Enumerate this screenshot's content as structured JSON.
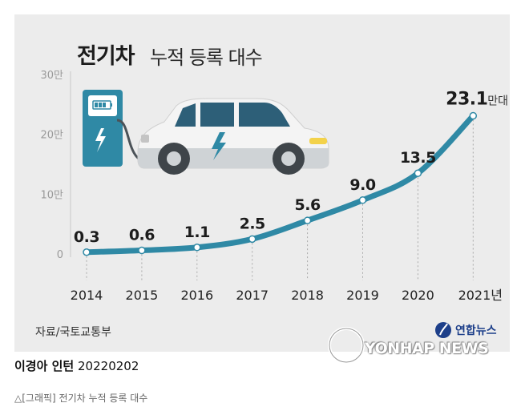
{
  "header": {
    "title_bold": "전기차",
    "title_rest": "누적 등록 대수"
  },
  "footer": {
    "source": "자료/국토교통부",
    "credit_name": "이경아 인턴",
    "credit_date": "20220202",
    "caption": "△[그래픽] 전기차 누적 등록 대수",
    "brand_ko": "연합뉴스",
    "brand_en": "YONHAP NEWS"
  },
  "colors": {
    "line": "#2f89a5",
    "point_fill": "#ffffff",
    "text": "#1c1c1c",
    "panel": "#ececec",
    "charger": "#2f89a5",
    "car_body": "#f4f4f4",
    "car_dark": "#4b5258",
    "window": "#2d5f78",
    "bolt": "#2f89a5"
  },
  "icons": [
    "ev-charger-icon",
    "car-icon",
    "lightning-icon",
    "battery-icon",
    "yonhap-logo-icon"
  ],
  "chart_data": {
    "type": "line",
    "title": "전기차 누적 등록 대수",
    "x": [
      "2014",
      "2015",
      "2016",
      "2017",
      "2018",
      "2019",
      "2020",
      "2021년"
    ],
    "series": [
      {
        "values": [
          0.3,
          0.6,
          1.1,
          2.5,
          5.6,
          9.0,
          13.5,
          23.1
        ]
      }
    ],
    "data_labels": [
      "0.3",
      "0.6",
      "1.1",
      "2.5",
      "5.6",
      "9.0",
      "13.5",
      "23.1"
    ],
    "last_label_unit": "만대",
    "y_ticks": [
      0,
      10,
      20,
      30
    ],
    "y_tick_labels": [
      "0",
      "10만",
      "20만",
      "30만"
    ],
    "ylim": [
      0,
      30
    ],
    "grid": false
  }
}
